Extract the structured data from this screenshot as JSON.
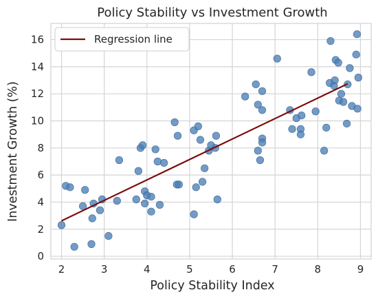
{
  "chart_data": {
    "type": "scatter",
    "title": "Policy Stability vs Investment Growth",
    "xlabel": "Policy Stability Index",
    "ylabel": "Investment Growth (%)",
    "xlim": [
      1.75,
      9.25
    ],
    "ylim": [
      -0.2,
      17.2
    ],
    "xticks": [
      2,
      3,
      4,
      5,
      6,
      7,
      8,
      9
    ],
    "yticks": [
      0,
      2,
      4,
      6,
      8,
      10,
      12,
      14,
      16
    ],
    "grid": true,
    "legend": {
      "position": "top-left",
      "entries": [
        "Regression line"
      ]
    },
    "colors": {
      "points": "#4c7fb5",
      "line": "#7a0d0d",
      "grid": "#d4d4d4"
    },
    "series": [
      {
        "kind": "scatter",
        "points": [
          [
            2.0,
            2.3
          ],
          [
            2.1,
            5.2
          ],
          [
            2.2,
            5.1
          ],
          [
            2.3,
            0.7
          ],
          [
            2.5,
            3.7
          ],
          [
            2.55,
            4.9
          ],
          [
            2.7,
            0.9
          ],
          [
            2.72,
            2.8
          ],
          [
            2.75,
            3.9
          ],
          [
            2.9,
            3.4
          ],
          [
            2.95,
            4.2
          ],
          [
            3.1,
            1.5
          ],
          [
            3.3,
            4.1
          ],
          [
            3.35,
            7.1
          ],
          [
            3.75,
            4.2
          ],
          [
            3.8,
            6.3
          ],
          [
            3.85,
            8.0
          ],
          [
            3.9,
            8.2
          ],
          [
            3.95,
            4.8
          ],
          [
            3.95,
            3.9
          ],
          [
            4.0,
            4.5
          ],
          [
            4.1,
            4.4
          ],
          [
            4.1,
            3.3
          ],
          [
            4.2,
            7.9
          ],
          [
            4.25,
            7.0
          ],
          [
            4.3,
            3.8
          ],
          [
            4.4,
            6.9
          ],
          [
            4.65,
            9.9
          ],
          [
            4.7,
            5.3
          ],
          [
            4.72,
            8.9
          ],
          [
            4.75,
            5.3
          ],
          [
            5.1,
            9.3
          ],
          [
            5.1,
            3.1
          ],
          [
            5.15,
            5.1
          ],
          [
            5.2,
            9.6
          ],
          [
            5.25,
            8.6
          ],
          [
            5.3,
            5.5
          ],
          [
            5.35,
            6.5
          ],
          [
            5.45,
            7.8
          ],
          [
            5.5,
            8.2
          ],
          [
            5.6,
            8.0
          ],
          [
            5.62,
            8.9
          ],
          [
            5.65,
            4.2
          ],
          [
            6.3,
            11.8
          ],
          [
            6.55,
            12.7
          ],
          [
            6.6,
            11.2
          ],
          [
            6.6,
            7.8
          ],
          [
            6.65,
            7.1
          ],
          [
            6.7,
            12.2
          ],
          [
            6.7,
            10.8
          ],
          [
            6.7,
            8.7
          ],
          [
            6.7,
            8.4
          ],
          [
            7.05,
            14.6
          ],
          [
            7.35,
            10.8
          ],
          [
            7.4,
            9.4
          ],
          [
            7.5,
            10.2
          ],
          [
            7.6,
            9.4
          ],
          [
            7.6,
            9.0
          ],
          [
            7.62,
            10.4
          ],
          [
            7.85,
            13.6
          ],
          [
            7.95,
            10.7
          ],
          [
            8.15,
            7.8
          ],
          [
            8.2,
            9.5
          ],
          [
            8.28,
            12.8
          ],
          [
            8.3,
            15.9
          ],
          [
            8.38,
            12.6
          ],
          [
            8.4,
            13.0
          ],
          [
            8.42,
            14.5
          ],
          [
            8.48,
            14.3
          ],
          [
            8.5,
            11.5
          ],
          [
            8.55,
            12.0
          ],
          [
            8.6,
            11.4
          ],
          [
            8.68,
            9.8
          ],
          [
            8.7,
            12.7
          ],
          [
            8.75,
            13.9
          ],
          [
            8.8,
            11.1
          ],
          [
            8.9,
            14.9
          ],
          [
            8.92,
            16.4
          ],
          [
            8.93,
            10.9
          ],
          [
            8.95,
            13.2
          ]
        ]
      },
      {
        "name": "Regression line",
        "kind": "line",
        "points": [
          [
            2.0,
            2.62
          ],
          [
            8.7,
            12.74
          ]
        ]
      }
    ]
  }
}
